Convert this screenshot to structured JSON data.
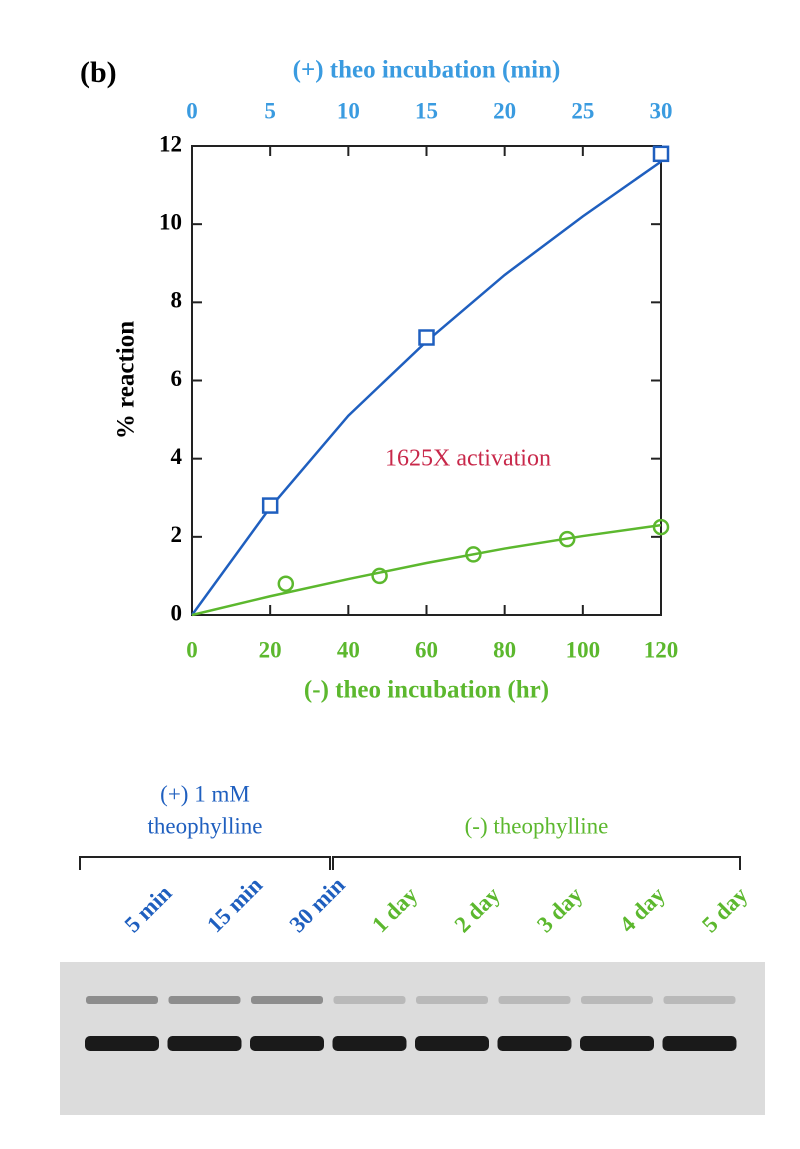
{
  "panel_label": "(b)",
  "chart_data": {
    "type": "scatter",
    "xlabel": "(-) theo incubation (hr)",
    "xlabel_color": "#5cb82e",
    "xlim": [
      0,
      120
    ],
    "xticks": [
      0,
      20,
      40,
      60,
      80,
      100,
      120
    ],
    "x2label": "(+) theo incubation (min)",
    "x2label_color": "#3a9be0",
    "x2lim": [
      0,
      30
    ],
    "x2ticks": [
      0,
      5,
      10,
      15,
      20,
      25,
      30
    ],
    "ylabel": "% reaction",
    "ylim": [
      0,
      12
    ],
    "yticks": [
      0,
      2,
      4,
      6,
      8,
      10,
      12
    ],
    "annotation": "1625X activation",
    "annotation_color": "#c8284a",
    "series": [
      {
        "axis": "x2",
        "marker": "square",
        "color": "#1f5fbf",
        "x": [
          5,
          15,
          30
        ],
        "values": [
          2.8,
          7.1,
          11.8
        ]
      },
      {
        "axis": "x",
        "marker": "circle",
        "color": "#5cb82e",
        "x": [
          24,
          48,
          72,
          96,
          120
        ],
        "values": [
          0.8,
          1.0,
          1.55,
          1.94,
          2.25
        ]
      }
    ],
    "fits": [
      {
        "axis": "x2",
        "color": "#1f5fbf",
        "x": [
          0,
          5,
          10,
          15,
          20,
          25,
          30
        ],
        "values": [
          0,
          2.75,
          5.1,
          7.0,
          8.7,
          10.2,
          11.6
        ]
      },
      {
        "axis": "x",
        "color": "#5cb82e",
        "x": [
          0,
          20,
          40,
          60,
          80,
          100,
          120
        ],
        "values": [
          0,
          0.48,
          0.92,
          1.33,
          1.7,
          2.02,
          2.3
        ]
      }
    ]
  },
  "gel": {
    "groups": [
      {
        "label_lines": [
          "(+) 1 mM",
          "theophylline"
        ],
        "color": "#1f5fbf"
      },
      {
        "label_lines": [
          "(-) theophylline"
        ],
        "color": "#5cb82e"
      }
    ],
    "lanes": [
      {
        "label": "5 min",
        "color": "#1f5fbf"
      },
      {
        "label": "15 min",
        "color": "#1f5fbf"
      },
      {
        "label": "30 min",
        "color": "#1f5fbf"
      },
      {
        "label": "1 day",
        "color": "#5cb82e"
      },
      {
        "label": "2 day",
        "color": "#5cb82e"
      },
      {
        "label": "3 day",
        "color": "#5cb82e"
      },
      {
        "label": "4 day",
        "color": "#5cb82e"
      },
      {
        "label": "5 day",
        "color": "#5cb82e"
      }
    ]
  }
}
